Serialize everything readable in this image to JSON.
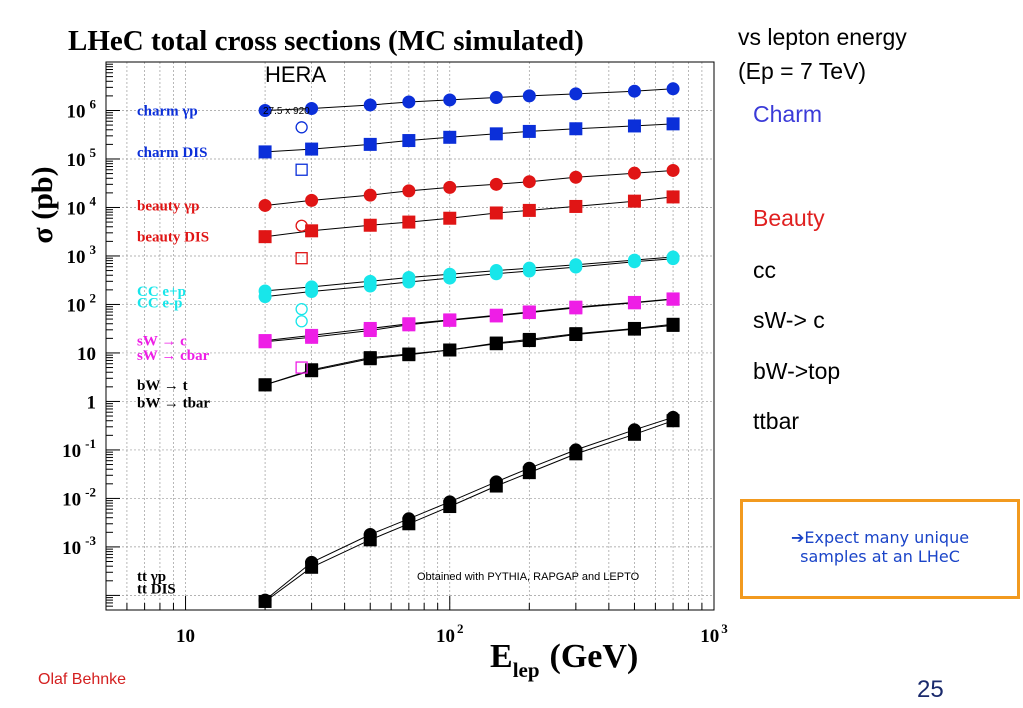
{
  "slide": {
    "side_title_line1": "vs lepton energy",
    "side_title_line2": "(Ep = 7 TeV)",
    "side_labels": [
      {
        "text": "Charm",
        "color": "#3a3ad8"
      },
      {
        "text": "Beauty",
        "color": "#e02020"
      },
      {
        "text": "cc",
        "color": "#000000"
      },
      {
        "text": "sW-> c",
        "color": "#000000"
      },
      {
        "text": "bW->top",
        "color": "#000000"
      },
      {
        "text": "ttbar",
        "color": "#000000"
      }
    ],
    "callout_arrow": "➔",
    "callout_line1": "Expect many unique",
    "callout_line2": "samples at an LHeC",
    "author": "Olaf Behnke",
    "page_number": "25"
  },
  "colors": {
    "blue": "#0b2fd9",
    "red": "#e01515",
    "cyan": "#18e6ea",
    "magenta": "#ee1ee6",
    "black": "#000000",
    "orange": "#f29a1f"
  },
  "chart_data": {
    "type": "scatter",
    "title": "LHeC total cross sections (MC simulated)",
    "xlabel": "E",
    "xlabel_sub": "lep",
    "xlabel_unit": "(GeV)",
    "ylabel": "σ (pb)",
    "xscale": "log",
    "yscale": "log",
    "xlim": [
      5,
      1000
    ],
    "ylim": [
      5e-05,
      10000000
    ],
    "grid": true,
    "x_tick_labels": [
      {
        "x": 10,
        "base": "10",
        "sup": ""
      },
      {
        "x": 100,
        "base": "10",
        "sup": "2"
      },
      {
        "x": 1000,
        "base": "10",
        "sup": "3"
      }
    ],
    "y_tick_labels": [
      {
        "y": 1000000,
        "base": "10",
        "sup": "6"
      },
      {
        "y": 100000,
        "base": "10",
        "sup": "5"
      },
      {
        "y": 10000,
        "base": "10",
        "sup": "4"
      },
      {
        "y": 1000,
        "base": "10",
        "sup": "3"
      },
      {
        "y": 100,
        "base": "10",
        "sup": "2"
      },
      {
        "y": 10,
        "base": "10",
        "sup": ""
      },
      {
        "y": 1,
        "base": "1",
        "sup": ""
      },
      {
        "y": 0.1,
        "base": "10",
        "sup": "-1"
      },
      {
        "y": 0.01,
        "base": "10",
        "sup": "-2"
      },
      {
        "y": 0.001,
        "base": "10",
        "sup": "-3"
      }
    ],
    "annotations": {
      "hera": "HERA",
      "hera_energy": "27.5 x 920",
      "footnote": "Obtained with PYTHIA, RAPGAP and LEPTO"
    },
    "x": [
      20,
      30,
      50,
      70,
      100,
      150,
      200,
      300,
      500,
      700
    ],
    "series": [
      {
        "name": "charm γp",
        "color": "#0b2fd9",
        "marker": "circle",
        "values": [
          1000000,
          1100000,
          1300000,
          1500000,
          1650000,
          1850000,
          2000000,
          2200000,
          2500000,
          2800000
        ]
      },
      {
        "name": "charm DIS",
        "color": "#0b2fd9",
        "marker": "square",
        "values": [
          140000,
          160000,
          200000,
          240000,
          280000,
          330000,
          370000,
          420000,
          480000,
          530000
        ]
      },
      {
        "name": "beauty γp",
        "color": "#e01515",
        "marker": "circle",
        "values": [
          11000,
          14000,
          18000,
          22000,
          26000,
          30000,
          34000,
          42000,
          51000,
          58000
        ]
      },
      {
        "name": "beauty DIS",
        "color": "#e01515",
        "marker": "square",
        "values": [
          2500,
          3300,
          4300,
          5000,
          6000,
          7700,
          8700,
          10500,
          13500,
          16500
        ]
      },
      {
        "name": "CC e+p",
        "color": "#18e6ea",
        "marker": "circle",
        "values": [
          190,
          230,
          300,
          360,
          420,
          500,
          560,
          660,
          820,
          950
        ]
      },
      {
        "name": "CC e-p",
        "color": "#18e6ea",
        "marker": "circle",
        "values": [
          145,
          185,
          240,
          290,
          350,
          430,
          490,
          590,
          760,
          880
        ]
      },
      {
        "name": "sW → c",
        "color": "#ee1ee6",
        "marker": "square",
        "values": [
          18,
          23,
          32,
          40,
          48,
          60,
          70,
          88,
          110,
          130
        ]
      },
      {
        "name": "sW → cbar",
        "color": "#ee1ee6",
        "marker": "square",
        "values": [
          17,
          21,
          29,
          38,
          47,
          58,
          68,
          85,
          108,
          128
        ]
      },
      {
        "name": "bW → t",
        "color": "#000000",
        "marker": "square",
        "values": [
          2.2,
          4.5,
          8,
          9.5,
          11.5,
          16,
          19,
          25,
          32,
          39
        ]
      },
      {
        "name": "bW → tbar",
        "color": "#000000",
        "marker": "square",
        "values": [
          2.2,
          4.3,
          7.6,
          9.2,
          11.5,
          15.5,
          18,
          24,
          31,
          37
        ]
      },
      {
        "name": "tt γp",
        "color": "#000000",
        "marker": "circle",
        "values": [
          8e-05,
          0.00048,
          0.0018,
          0.0038,
          0.0085,
          0.022,
          0.042,
          0.1,
          0.26,
          0.47
        ]
      },
      {
        "name": "tt DIS",
        "color": "#000000",
        "marker": "square",
        "values": [
          7.5e-05,
          0.00038,
          0.0014,
          0.003,
          0.0068,
          0.018,
          0.034,
          0.083,
          0.21,
          0.4
        ]
      }
    ],
    "legend": [
      {
        "label": "charm γp",
        "color": "#0b2fd9",
        "y": 1000000,
        "marker": "circle"
      },
      {
        "label": "charm DIS",
        "color": "#0b2fd9",
        "y": 140000,
        "marker": "square"
      },
      {
        "label": "beauty γp",
        "color": "#e01515",
        "y": 11000,
        "marker": "circle"
      },
      {
        "label": "beauty DIS",
        "color": "#e01515",
        "y": 2500,
        "marker": "square"
      },
      {
        "label": "CC e+p",
        "color": "#18e6ea",
        "y": 190,
        "marker": ""
      },
      {
        "label": "CC e-p",
        "color": "#18e6ea",
        "y": 110,
        "marker": ""
      },
      {
        "label": "sW → c",
        "color": "#ee1ee6",
        "y": 18,
        "marker": ""
      },
      {
        "label": "sW → cbar",
        "color": "#ee1ee6",
        "y": 9,
        "marker": ""
      },
      {
        "label": "bW → t",
        "color": "#000000",
        "y": 2.2,
        "marker": ""
      },
      {
        "label": "bW → tbar",
        "color": "#000000",
        "y": 0.95,
        "marker": ""
      },
      {
        "label": "tt  γp",
        "color": "#000000",
        "y": 0.00025,
        "marker": ""
      },
      {
        "label": "tt  DIS",
        "color": "#000000",
        "y": 0.00014,
        "marker": ""
      }
    ],
    "hera_points": [
      {
        "name": "charm γp",
        "color": "#0b2fd9",
        "marker": "circle",
        "x": 27.5,
        "y": 450000
      },
      {
        "name": "charm DIS",
        "color": "#0b2fd9",
        "marker": "square",
        "x": 27.5,
        "y": 60000
      },
      {
        "name": "beauty γp",
        "color": "#e01515",
        "marker": "circle",
        "x": 27.5,
        "y": 4200
      },
      {
        "name": "beauty DIS",
        "color": "#e01515",
        "marker": "square",
        "x": 27.5,
        "y": 900
      },
      {
        "name": "CC e+p",
        "color": "#18e6ea",
        "marker": "circle",
        "x": 27.5,
        "y": 80
      },
      {
        "name": "CC e-p",
        "color": "#18e6ea",
        "marker": "circle",
        "x": 27.5,
        "y": 45
      },
      {
        "name": "sW → c",
        "color": "#ee1ee6",
        "marker": "square",
        "x": 27.5,
        "y": 5
      }
    ]
  }
}
